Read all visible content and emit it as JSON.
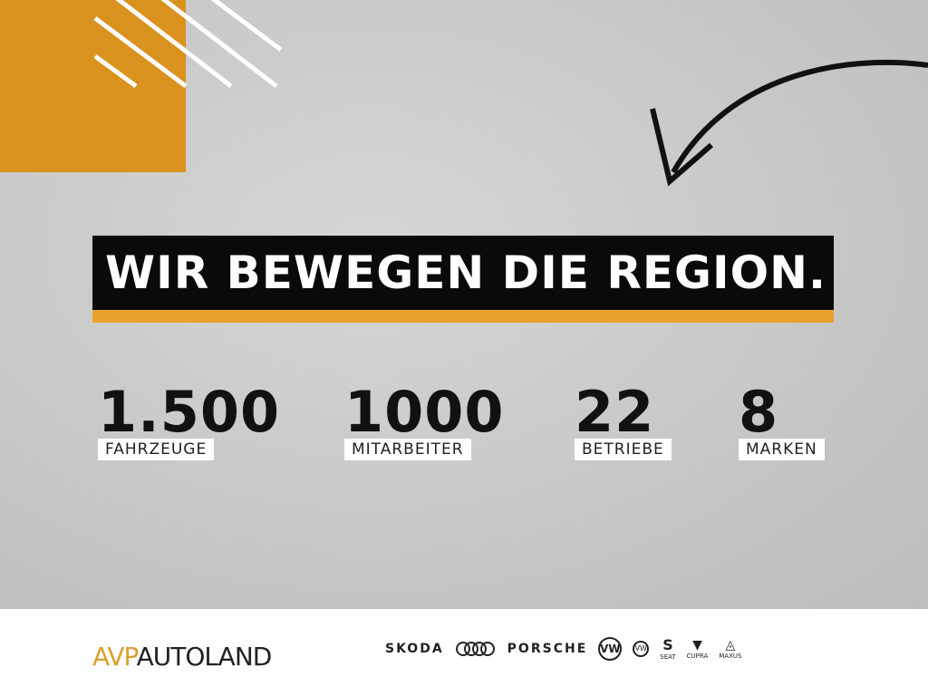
{
  "colors": {
    "accent": "#d9921e",
    "banner": "#0a0a0a",
    "background": "#c9c9c7"
  },
  "headline": "WIR BEWEGEN DIE REGION.",
  "stats": [
    {
      "value": "1.500",
      "label": "FAHRZEUGE"
    },
    {
      "value": "1000",
      "label": "MITARBEITER"
    },
    {
      "value": "22",
      "label": "BETRIEBE"
    },
    {
      "value": "8",
      "label": "MARKEN"
    }
  ],
  "footer": {
    "logo_avp": "AVP",
    "logo_rest": "AUTOLAND",
    "brands": {
      "skoda": "SKODA",
      "audi": "audi-rings-logo",
      "porsche": "PORSCHE",
      "vw": "VW",
      "vw_nutz": "VW",
      "seat": "SEAT",
      "cupra": "CUPRA",
      "maxus": "MAXUS"
    }
  }
}
